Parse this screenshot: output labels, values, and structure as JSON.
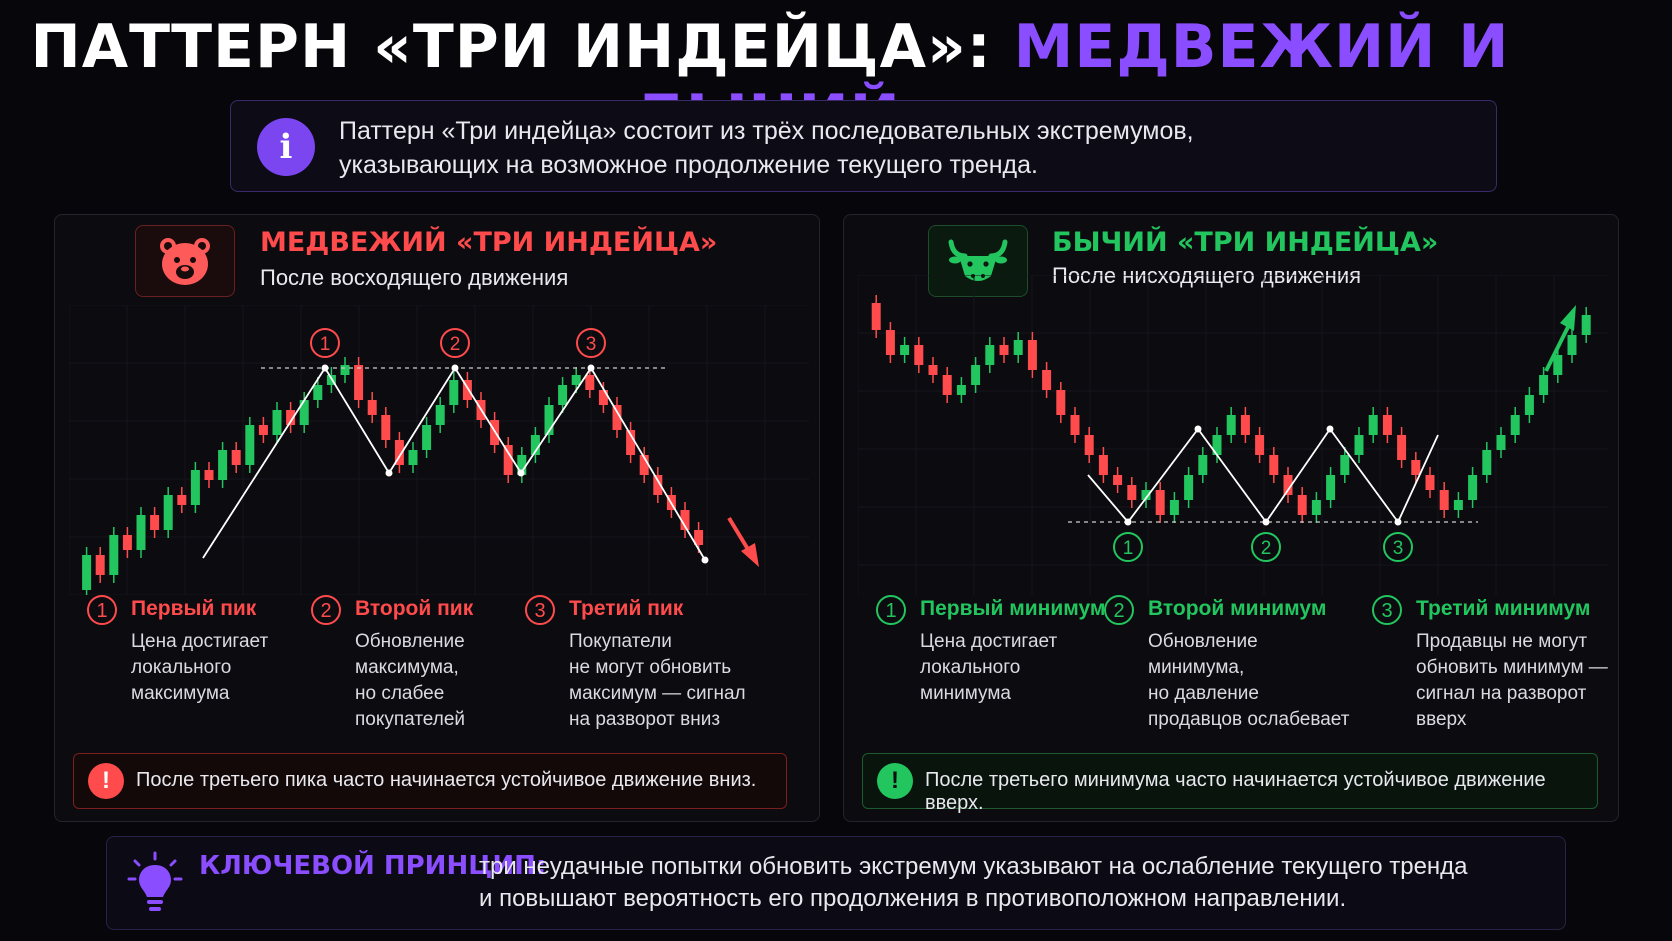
{
  "title": {
    "part1": "ПАТТЕРН «ТРИ ИНДЕЙЦА»:",
    "part2": "МЕДВЕЖИЙ И БЫЧИЙ"
  },
  "info": {
    "icon": "i",
    "line1": "Паттерн «Три индейца» состоит из трёх последовательных экстремумов,",
    "line2": "указывающих на возможное продолжение текущего тренда."
  },
  "bear": {
    "title": "МЕДВЕЖИЙ «ТРИ ИНДЕЙЦА»",
    "subtitle": "После восходящего движения",
    "color": "#ff4b4b",
    "icon": "bear-icon",
    "markers": [
      "1",
      "2",
      "3"
    ],
    "steps": [
      {
        "num": "1",
        "title": "Первый пик",
        "lines": [
          "Цена достигает",
          "локального",
          "максимума"
        ]
      },
      {
        "num": "2",
        "title": "Второй пик",
        "lines": [
          "Обновление",
          "максимума,",
          "но слабее",
          "покупателей"
        ]
      },
      {
        "num": "3",
        "title": "Третий пик",
        "lines": [
          "Покупатели",
          "не могут обновить",
          "максимум — сигнал",
          "на разворот вниз"
        ]
      }
    ],
    "alert": {
      "icon": "!",
      "text": "После третьего пика часто начинается устойчивое движение вниз."
    }
  },
  "bull": {
    "title": "БЫЧИЙ «ТРИ ИНДЕЙЦА»",
    "subtitle": "После нисходящего движения",
    "color": "#22c55e",
    "icon": "bull-icon",
    "markers": [
      "1",
      "2",
      "3"
    ],
    "steps": [
      {
        "num": "1",
        "title": "Первый минимум",
        "lines": [
          "Цена достигает",
          "локального",
          "минимума"
        ]
      },
      {
        "num": "2",
        "title": "Второй минимум",
        "lines": [
          "Обновление",
          "минимума,",
          "но давление",
          "продавцов ослабевает"
        ]
      },
      {
        "num": "3",
        "title": "Третий минимум",
        "lines": [
          "Продавцы не могут",
          "обновить минимум —",
          "сигнал на разворот",
          "вверх"
        ]
      }
    ],
    "alert": {
      "icon": "!",
      "text": "После третьего минимума часто начинается устойчивое движение вверх."
    }
  },
  "key": {
    "icon": "lightbulb-icon",
    "label": "КЛЮЧЕВОЙ ПРИНЦИП:",
    "line1": "три неудачные попытки обновить экстремум указывают на ослабление текущего тренда",
    "line2": "и повышают вероятность его продолжения в противоположном направлении."
  }
}
